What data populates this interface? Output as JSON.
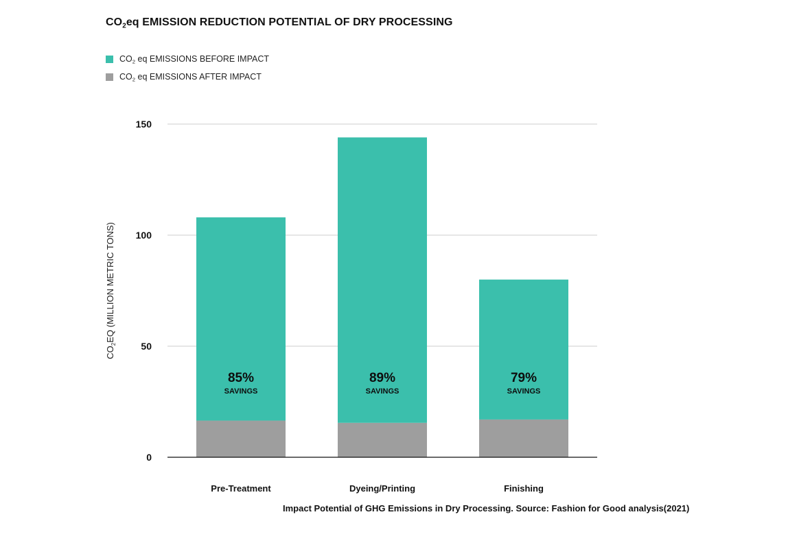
{
  "title": {
    "prefix": "CO",
    "sub": "2",
    "rest": "eq EMISSION REDUCTION POTENTIAL OF DRY PROCESSING"
  },
  "legend": [
    {
      "prefix": "CO",
      "sub": "2",
      "rest": " eq EMISSIONS BEFORE IMPACT",
      "color": "#3bbfac"
    },
    {
      "prefix": "CO",
      "sub": "2",
      "rest": " eq EMISSIONS AFTER IMPACT",
      "color": "#9e9e9e"
    }
  ],
  "caption": "Impact Potential of GHG Emissions in Dry Processing. Source: Fashion for Good analysis(2021)",
  "chart_data": {
    "type": "bar",
    "stacked": true,
    "categories": [
      "Pre-Treatment",
      "Dyeing/Printing",
      "Finishing"
    ],
    "series": [
      {
        "values": [
          16.5,
          15.5,
          17.0
        ],
        "color": "#9e9e9e"
      },
      {
        "values": [
          91.5,
          128.5,
          63.0
        ],
        "color": "#3bbfac"
      }
    ],
    "totals": [
      108,
      144,
      80
    ],
    "annotations": [
      {
        "value": "85%",
        "label": "SAVINGS"
      },
      {
        "value": "89%",
        "label": "SAVINGS"
      },
      {
        "value": "79%",
        "label": "SAVINGS"
      }
    ],
    "ylabel": {
      "prefix": "CO",
      "sub": "2",
      "rest": "EQ (MILLION METRIC TONS)"
    },
    "yticks": [
      "0",
      "50",
      "100",
      "150"
    ],
    "ylim": [
      0,
      150
    ],
    "grid": true
  }
}
